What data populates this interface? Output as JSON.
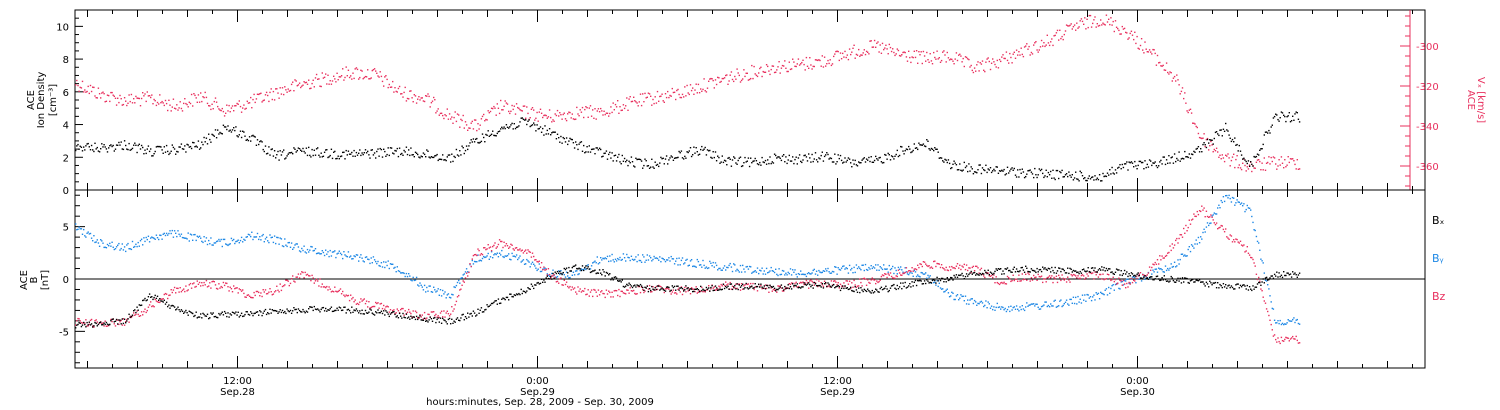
{
  "figure": {
    "xaxis_title": "hours:minutes, Sep. 28, 2009 - Sep. 30, 2009",
    "time_ticks": [
      {
        "t": 0,
        "line1": "12:00",
        "line2": "Sep.28"
      },
      {
        "t": 12,
        "line1": "0:00",
        "line2": "Sep.29"
      },
      {
        "t": 24,
        "line1": "12:00",
        "line2": "Sep.29"
      },
      {
        "t": 36,
        "line1": "0:00",
        "line2": "Sep.30"
      }
    ],
    "colors": {
      "black": "#000000",
      "red": "#e8305e",
      "blue": "#1e88e5"
    }
  },
  "chart_data": [
    {
      "type": "scatter",
      "panel": "top",
      "ylabel_left": [
        "ACE",
        "Ion Density",
        "[cm⁻³]"
      ],
      "ylabel_right": [
        "ACE",
        "Vₓ [km/s]"
      ],
      "xlim": [
        -6.5,
        47.5
      ],
      "ylim_left": [
        0,
        11
      ],
      "ylim_right": [
        -372,
        -282
      ],
      "yticks_left": [
        0,
        2,
        4,
        6,
        8,
        10
      ],
      "yticks_right": [
        -300,
        -320,
        -340,
        -360
      ],
      "series": [
        {
          "axis": "left",
          "color": "#000000",
          "x": [
            -6.5,
            -5.5,
            -4.5,
            -3.5,
            -2.5,
            -1.5,
            -0.5,
            0.5,
            1.5,
            2.5,
            3.5,
            4.5,
            5.5,
            6.5,
            7.5,
            8.5,
            9.5,
            10.5,
            11.5,
            12.5,
            13.5,
            14.5,
            15.5,
            16.5,
            17.5,
            18.5,
            19.5,
            20.5,
            21.5,
            22.5,
            23.5,
            24.5,
            25.5,
            26.5,
            27.5,
            28.5,
            29.5,
            30.5,
            31.5,
            32.5,
            33.5,
            34.5,
            35.5,
            36.5,
            37.5,
            38.5,
            39.5,
            40.5,
            41.5
          ],
          "y": [
            2.7,
            2.6,
            2.8,
            2.4,
            2.5,
            2.8,
            3.9,
            3.2,
            2.1,
            2.4,
            2.3,
            2.2,
            2.3,
            2.4,
            2.2,
            2.0,
            3.0,
            3.8,
            4.2,
            3.5,
            2.8,
            2.3,
            1.8,
            1.6,
            2.1,
            2.5,
            1.8,
            1.7,
            2.0,
            1.9,
            2.1,
            1.7,
            1.8,
            2.4,
            2.9,
            1.6,
            1.3,
            1.2,
            1.1,
            1.0,
            0.9,
            0.8,
            1.5,
            1.6,
            2.0,
            2.5,
            3.8,
            1.5,
            4.5
          ]
        },
        {
          "axis": "right",
          "color": "#e8305e",
          "x": [
            -6.5,
            -5.5,
            -4.5,
            -3.5,
            -2.5,
            -1.5,
            -0.5,
            0.5,
            1.5,
            2.5,
            3.5,
            4.5,
            5.5,
            6.5,
            7.5,
            8.5,
            9.5,
            10.5,
            11.5,
            12.5,
            13.5,
            14.5,
            15.5,
            16.5,
            17.5,
            18.5,
            19.5,
            20.5,
            21.5,
            22.5,
            23.5,
            24.5,
            25.5,
            26.5,
            27.5,
            28.5,
            29.5,
            30.5,
            31.5,
            32.5,
            33.5,
            34.5,
            35.5,
            36.5,
            37.5,
            38.5,
            39.5,
            40.5,
            41.5
          ],
          "y": [
            -318,
            -324,
            -327,
            -326,
            -330,
            -325,
            -332,
            -328,
            -323,
            -319,
            -316,
            -313,
            -314,
            -323,
            -326,
            -335,
            -340,
            -330,
            -333,
            -335,
            -333,
            -333,
            -329,
            -326,
            -324,
            -320,
            -316,
            -313,
            -310,
            -309,
            -307,
            -303,
            -300,
            -304,
            -306,
            -305,
            -311,
            -307,
            -302,
            -297,
            -290,
            -286,
            -292,
            -303,
            -316,
            -345,
            -356,
            -360,
            -358
          ]
        }
      ]
    },
    {
      "type": "scatter",
      "panel": "bottom",
      "ylabel_left": [
        "ACE",
        "B",
        "[nT]"
      ],
      "xlim": [
        -6.5,
        47.5
      ],
      "ylim": [
        -8.5,
        8.5
      ],
      "yticks": [
        -5,
        0,
        5
      ],
      "series": [
        {
          "name": "Bₓ",
          "color": "#000000",
          "x": [
            -6.5,
            -5.5,
            -4.5,
            -3.5,
            -2.5,
            -1.5,
            -0.5,
            0.5,
            1.5,
            2.5,
            3.5,
            4.5,
            5.5,
            6.5,
            7.5,
            8.5,
            9.5,
            10.5,
            11.5,
            12.5,
            13.5,
            14.5,
            15.5,
            16.5,
            17.5,
            18.5,
            19.5,
            20.5,
            21.5,
            22.5,
            23.5,
            24.5,
            25.5,
            26.5,
            27.5,
            28.5,
            29.5,
            30.5,
            31.5,
            32.5,
            33.5,
            34.5,
            35.5,
            36.5,
            37.5,
            38.5,
            39.5,
            40.5,
            41.5
          ],
          "y": [
            -4.4,
            -4.2,
            -3.9,
            -1.5,
            -2.8,
            -3.5,
            -3.3,
            -3.3,
            -3.0,
            -2.9,
            -2.8,
            -2.9,
            -3.1,
            -3.4,
            -3.8,
            -4.0,
            -3.2,
            -2.0,
            -1.0,
            0.3,
            1.2,
            0.8,
            -0.5,
            -0.9,
            -0.8,
            -0.9,
            -0.7,
            -0.6,
            -0.8,
            -0.6,
            -0.5,
            -0.9,
            -1.1,
            -0.6,
            -0.2,
            0.1,
            0.6,
            0.8,
            1.0,
            0.9,
            0.8,
            1.0,
            0.6,
            0.2,
            0.0,
            -0.3,
            -0.6,
            -0.8,
            0.5
          ]
        },
        {
          "name": "Bᵧ",
          "color": "#1e88e5",
          "x": [
            -6.5,
            -5.5,
            -4.5,
            -3.5,
            -2.5,
            -1.5,
            -0.5,
            0.5,
            1.5,
            2.5,
            3.5,
            4.5,
            5.5,
            6.5,
            7.5,
            8.5,
            9.5,
            10.5,
            11.5,
            12.5,
            13.5,
            14.5,
            15.5,
            16.5,
            17.5,
            18.5,
            19.5,
            20.5,
            21.5,
            22.5,
            23.5,
            24.5,
            25.5,
            26.5,
            27.5,
            28.5,
            29.5,
            30.5,
            31.5,
            32.5,
            33.5,
            34.5,
            35.5,
            36.5,
            37.5,
            38.5,
            39.5,
            40.5,
            41.5
          ],
          "y": [
            5.0,
            3.5,
            3.0,
            4.0,
            4.4,
            3.8,
            3.5,
            4.2,
            3.8,
            3.0,
            2.6,
            2.3,
            1.8,
            1.0,
            -0.8,
            -1.5,
            2.0,
            2.5,
            1.8,
            0.6,
            0.5,
            2.0,
            2.1,
            2.0,
            1.8,
            1.5,
            1.2,
            1.0,
            0.8,
            0.6,
            0.8,
            1.0,
            1.1,
            0.9,
            0.5,
            -1.5,
            -2.2,
            -2.7,
            -2.6,
            -2.4,
            -2.0,
            -1.5,
            -0.2,
            0.5,
            1.5,
            4.0,
            8.0,
            6.5,
            -4.0
          ]
        },
        {
          "name": "Bz",
          "color": "#e8305e",
          "x": [
            -6.5,
            -5.5,
            -4.5,
            -3.5,
            -2.5,
            -1.5,
            -0.5,
            0.5,
            1.5,
            2.5,
            3.5,
            4.5,
            5.5,
            6.5,
            7.5,
            8.5,
            9.5,
            10.5,
            11.5,
            12.5,
            13.5,
            14.5,
            15.5,
            16.5,
            17.5,
            18.5,
            19.5,
            20.5,
            21.5,
            22.5,
            23.5,
            24.5,
            25.5,
            26.5,
            27.5,
            28.5,
            29.5,
            30.5,
            31.5,
            32.5,
            33.5,
            34.5,
            35.5,
            36.5,
            37.5,
            38.5,
            39.5,
            40.5,
            41.5
          ],
          "y": [
            -4.0,
            -4.2,
            -4.0,
            -2.5,
            -1.0,
            -0.4,
            -0.6,
            -1.5,
            -1.0,
            0.5,
            -0.5,
            -1.8,
            -2.5,
            -3.0,
            -3.5,
            -3.2,
            2.5,
            3.5,
            2.8,
            0.5,
            -1.0,
            -1.4,
            -1.2,
            -0.8,
            -1.1,
            -1.0,
            -0.6,
            -0.7,
            -0.9,
            -0.5,
            -0.3,
            -0.5,
            0.0,
            0.6,
            1.5,
            1.2,
            1.0,
            -0.2,
            0.3,
            0.0,
            0.2,
            0.5,
            -0.5,
            1.0,
            3.5,
            6.8,
            4.5,
            2.5,
            -5.8
          ]
        }
      ]
    }
  ]
}
